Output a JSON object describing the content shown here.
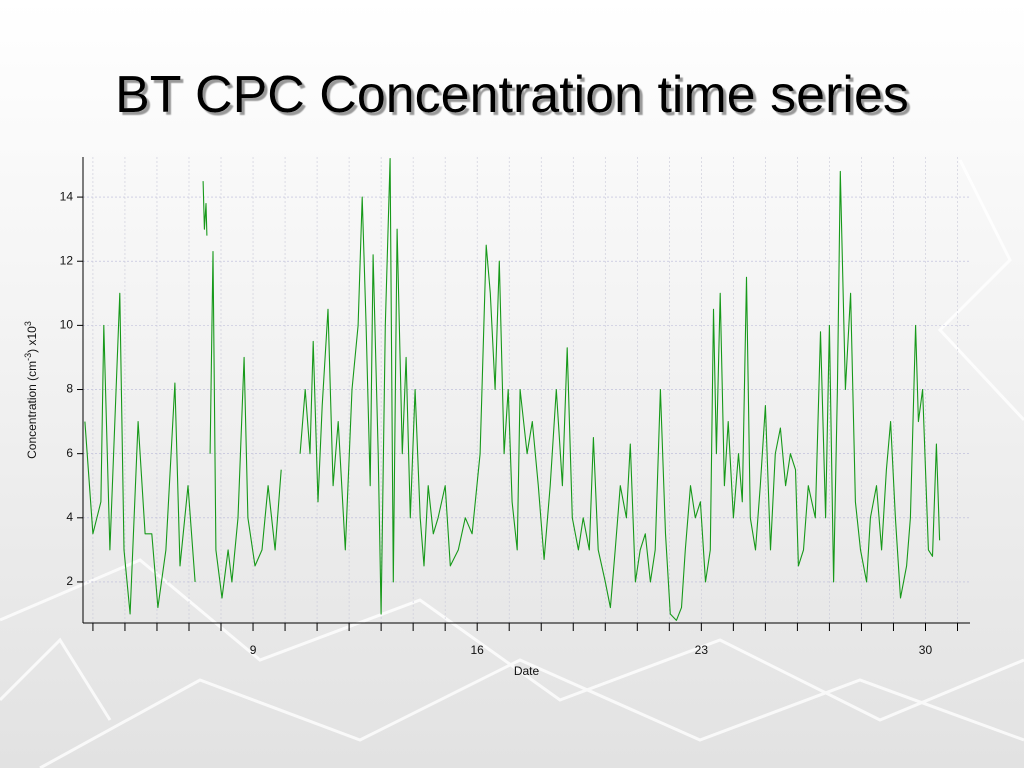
{
  "chart_data": {
    "type": "line",
    "title": "BT CPC Concentration time series",
    "x_label": "Date",
    "y_label_parts": [
      "Concentration (cm",
      "-3",
      ") x10",
      "3"
    ],
    "xlim": [
      3.69,
      31.39
    ],
    "ylim": [
      0.72,
      15.25
    ],
    "xticks": [
      9,
      16,
      23,
      30
    ],
    "x_minor_ticks": [
      4,
      5,
      6,
      7,
      8,
      10,
      11,
      12,
      13,
      14,
      15,
      17,
      18,
      19,
      20,
      21,
      22,
      24,
      25,
      26,
      27,
      28,
      29,
      31
    ],
    "yticks": [
      2,
      4,
      6,
      8,
      10,
      12,
      14
    ],
    "grid": true,
    "series": [
      {
        "color": "#17991a",
        "x": [
          3.75,
          4.0,
          4.25,
          4.34,
          4.53,
          4.84,
          4.97,
          5.16,
          5.41,
          5.63,
          5.84,
          6.03,
          6.28,
          6.56,
          6.72,
          6.97,
          7.19,
          null,
          7.44,
          7.48,
          7.53,
          7.56,
          null,
          7.66,
          7.75,
          7.84,
          8.03,
          8.22,
          8.34,
          8.53,
          8.72,
          8.84,
          9.06,
          9.28,
          9.47,
          9.69,
          9.88,
          null,
          10.47,
          10.63,
          10.78,
          10.88,
          11.03,
          11.16,
          11.34,
          11.5,
          11.66,
          11.88,
          12.09,
          12.28,
          12.41,
          12.53,
          12.66,
          12.75,
          12.91,
          13.0,
          13.13,
          13.28,
          13.38,
          13.5,
          13.66,
          13.78,
          13.91,
          14.06,
          14.22,
          14.34,
          14.47,
          14.63,
          14.78,
          15.0,
          15.16,
          15.41,
          15.63,
          15.84,
          16.09,
          16.28,
          16.41,
          16.56,
          16.69,
          16.84,
          16.97,
          17.09,
          17.25,
          17.34,
          17.56,
          17.72,
          17.91,
          18.09,
          18.28,
          18.47,
          18.66,
          18.81,
          18.97,
          19.16,
          19.31,
          19.5,
          19.63,
          19.78,
          20.0,
          20.16,
          20.31,
          20.47,
          20.66,
          20.78,
          20.94,
          21.09,
          21.25,
          21.41,
          21.56,
          21.72,
          21.88,
          22.03,
          22.22,
          22.38,
          22.5,
          22.66,
          22.81,
          22.97,
          23.13,
          23.28,
          23.38,
          23.47,
          23.59,
          23.72,
          23.84,
          24.0,
          24.16,
          24.28,
          24.41,
          24.53,
          24.69,
          24.84,
          25.0,
          25.16,
          25.31,
          25.47,
          25.63,
          25.78,
          25.94,
          26.03,
          26.19,
          26.34,
          26.56,
          26.72,
          26.88,
          27.0,
          27.13,
          27.25,
          27.34,
          27.5,
          27.66,
          27.81,
          27.97,
          28.16,
          28.28,
          28.47,
          28.63,
          28.78,
          28.91,
          29.06,
          29.22,
          29.41,
          29.53,
          29.69,
          29.78,
          29.91,
          30.09,
          30.22,
          30.34,
          30.44
        ],
        "values": [
          7,
          3.5,
          4.5,
          10,
          3,
          11,
          3,
          1,
          7,
          3.5,
          3.5,
          1.2,
          3,
          8.2,
          2.5,
          5,
          2,
          null,
          14.5,
          13,
          13.8,
          12.8,
          null,
          6,
          12.3,
          3,
          1.5,
          3,
          2,
          4,
          9,
          4,
          2.5,
          3,
          5,
          3,
          5.5,
          null,
          6,
          8,
          6,
          9.5,
          4.5,
          7.5,
          10.5,
          5,
          7,
          3,
          8,
          10,
          14,
          10,
          5,
          12.2,
          6,
          1,
          10,
          15.2,
          2,
          13,
          6,
          9,
          4,
          8,
          4,
          2.5,
          5,
          3.5,
          4,
          5,
          2.5,
          3,
          4,
          3.5,
          6,
          12.5,
          11,
          8,
          12,
          6,
          8,
          4.5,
          3,
          8,
          6,
          7,
          5,
          2.7,
          5,
          8,
          5,
          9.3,
          4,
          3,
          4,
          3,
          6.5,
          3,
          2,
          1.2,
          3,
          5,
          4,
          6.3,
          2,
          3,
          3.5,
          2,
          3,
          8,
          3.5,
          1,
          0.8,
          1.2,
          3,
          5,
          4,
          4.5,
          2,
          3,
          10.5,
          6,
          11,
          5,
          7,
          4,
          6,
          4.5,
          11.5,
          4,
          3,
          5,
          7.5,
          3,
          6,
          6.8,
          5,
          6,
          5.5,
          2.5,
          3,
          5,
          4,
          9.8,
          4,
          10,
          2,
          8,
          14.8,
          8,
          11,
          4.5,
          3,
          2,
          4,
          5,
          3,
          5.5,
          7,
          4,
          1.5,
          2.5,
          4,
          10,
          7,
          8,
          3,
          2.8,
          6.3,
          3.3
        ]
      }
    ]
  }
}
